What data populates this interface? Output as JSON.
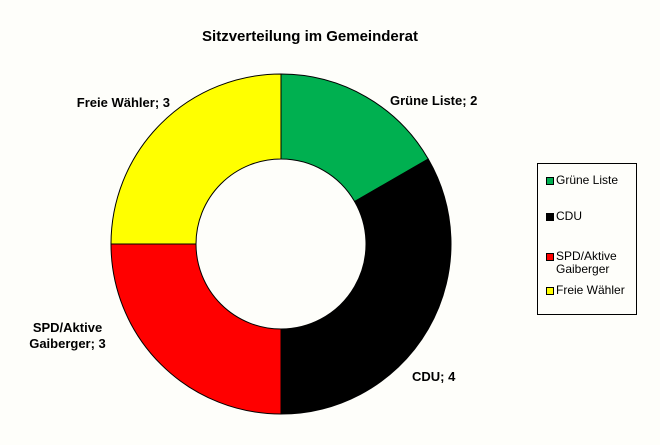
{
  "chart_data": {
    "type": "donut",
    "title": "Sitzverteilung im Gemeinderat",
    "categories": [
      "Grüne Liste",
      "CDU",
      "SPD/Aktive Gaiberger",
      "Freie Wähler"
    ],
    "values": [
      2,
      4,
      3,
      3
    ],
    "value_labels": [
      "Grüne Liste; 2",
      "CDU; 4",
      "SPD/Aktive Gaiberger; 3",
      "Freie Wähler; 3"
    ],
    "colors": [
      "#00b050",
      "#000000",
      "#ff0000",
      "#ffff00"
    ],
    "legend": "right"
  }
}
